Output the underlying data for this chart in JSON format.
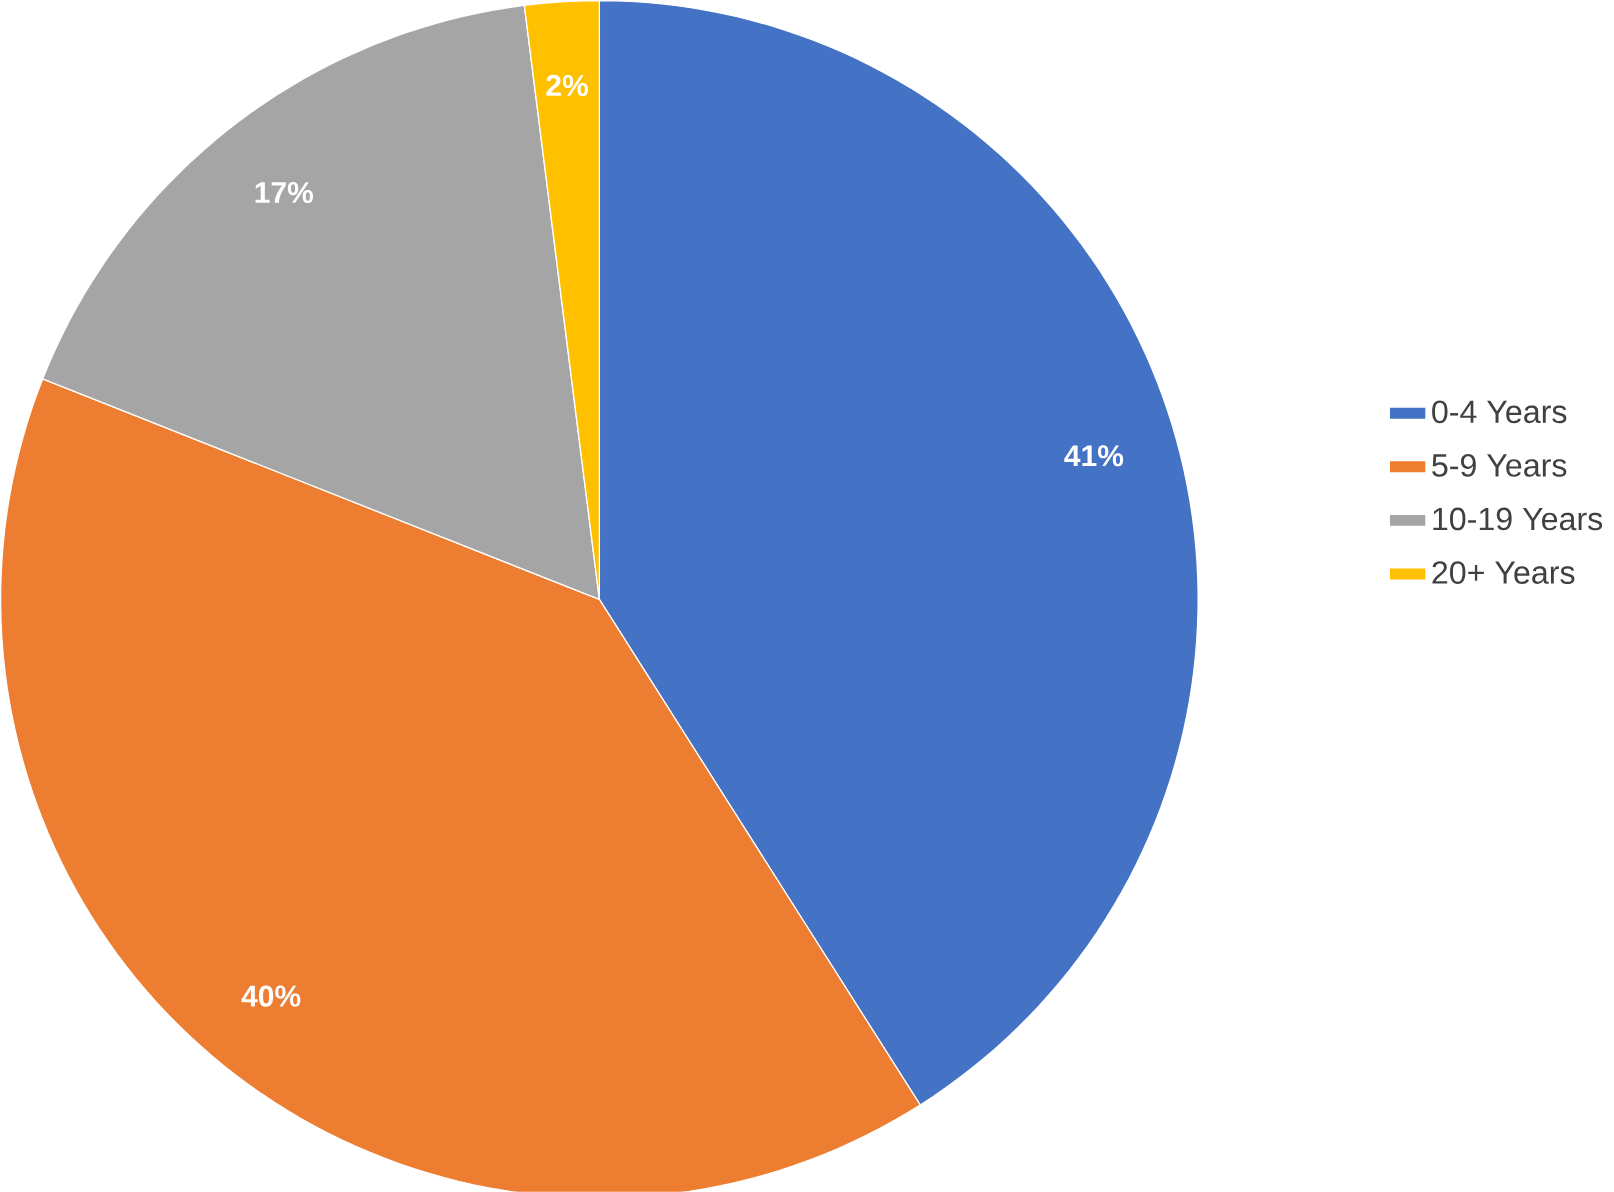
{
  "chart_data": {
    "type": "pie",
    "categories": [
      "0-4 Years",
      "5-9 Years",
      "10-19 Years",
      "20+ Years"
    ],
    "values": [
      41,
      40,
      17,
      2
    ],
    "colors": [
      "#4472c4",
      "#ed7d31",
      "#a5a5a5",
      "#ffc000"
    ],
    "value_labels": [
      "41%",
      "40%",
      "17%",
      "2%"
    ],
    "legend": "right"
  }
}
